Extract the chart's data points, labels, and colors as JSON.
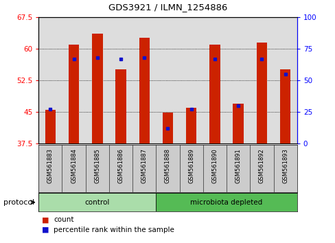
{
  "title": "GDS3921 / ILMN_1254886",
  "samples": [
    "GSM561883",
    "GSM561884",
    "GSM561885",
    "GSM561886",
    "GSM561887",
    "GSM561888",
    "GSM561889",
    "GSM561890",
    "GSM561891",
    "GSM561892",
    "GSM561893"
  ],
  "count_values": [
    45.5,
    61.0,
    63.5,
    55.0,
    62.5,
    44.8,
    46.0,
    61.0,
    47.0,
    61.5,
    55.0
  ],
  "percentile_values": [
    27,
    67,
    68,
    67,
    68,
    12,
    27,
    67,
    30,
    67,
    55
  ],
  "groups": [
    {
      "label": "control",
      "start": 0,
      "end": 5,
      "color": "#aaddaa"
    },
    {
      "label": "microbiota depleted",
      "start": 5,
      "end": 11,
      "color": "#55bb55"
    }
  ],
  "left_ylim": [
    37.5,
    67.5
  ],
  "right_ylim": [
    0,
    100
  ],
  "left_yticks": [
    37.5,
    45.0,
    52.5,
    60.0,
    67.5
  ],
  "right_yticks": [
    0,
    25,
    50,
    75,
    100
  ],
  "bar_color": "#cc2200",
  "marker_color": "#1111cc",
  "plot_bg_color": "#dddddd",
  "sample_bg_color": "#cccccc",
  "protocol_label": "protocol",
  "legend_count": "count",
  "legend_percentile": "percentile rank within the sample"
}
